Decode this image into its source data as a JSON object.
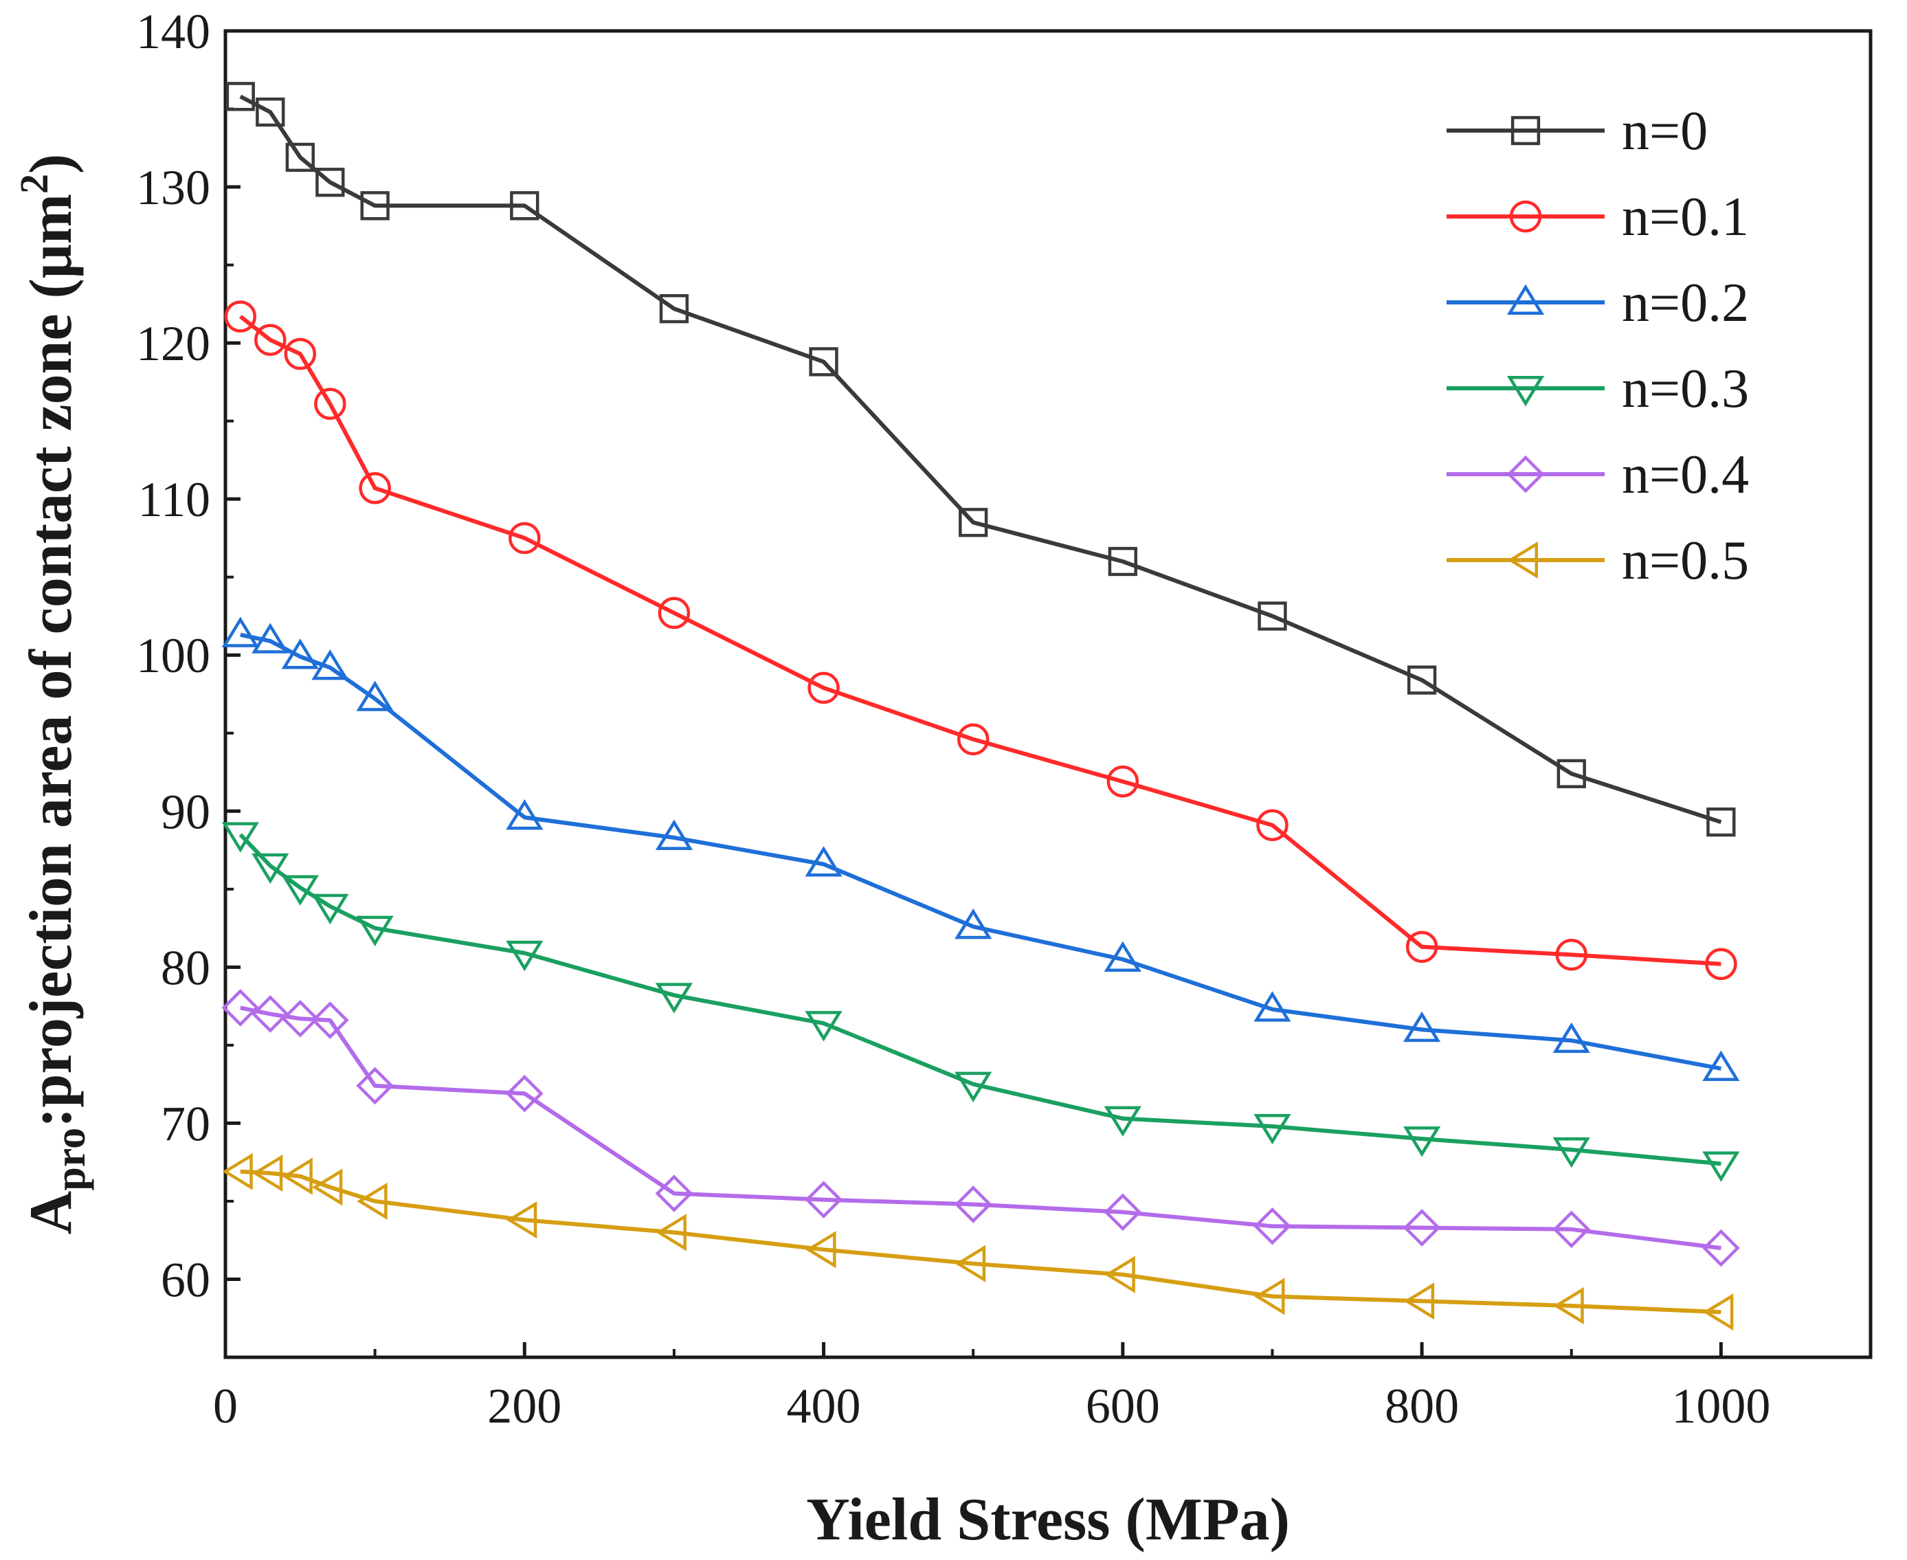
{
  "chart_data": {
    "type": "line",
    "xlabel": "Yield Stress (MPa)",
    "ylabel": {
      "main": "A",
      "sub": "pro",
      "rest": ":projection area of contact zone (μm",
      "sup": "2",
      "close": ")"
    },
    "xlim": [
      0,
      1100
    ],
    "ylim": [
      55,
      140
    ],
    "xticks": [
      0,
      200,
      400,
      600,
      800,
      1000
    ],
    "yticks": [
      60,
      70,
      80,
      90,
      100,
      110,
      120,
      130,
      140
    ],
    "grid": false,
    "legend_position": "top-right",
    "x": [
      10,
      30,
      50,
      70,
      100,
      200,
      300,
      400,
      500,
      600,
      700,
      800,
      900,
      1000
    ],
    "series": [
      {
        "name": "n=0",
        "marker": "square",
        "color": "#3a3a3a",
        "values": [
          135.8,
          134.8,
          131.9,
          130.3,
          128.8,
          128.8,
          122.2,
          118.8,
          108.5,
          106.0,
          102.5,
          98.4,
          92.4,
          89.3
        ]
      },
      {
        "name": "n=0.1",
        "marker": "circle",
        "color": "#ff2a2a",
        "values": [
          121.7,
          120.2,
          119.3,
          116.1,
          110.7,
          107.5,
          102.7,
          97.9,
          94.6,
          91.9,
          89.1,
          81.3,
          80.8,
          80.2
        ]
      },
      {
        "name": "n=0.2",
        "marker": "triangle-up",
        "color": "#1f6fd8",
        "values": [
          101.3,
          100.9,
          99.9,
          99.2,
          97.2,
          89.6,
          88.3,
          86.6,
          82.6,
          80.5,
          77.3,
          76.0,
          75.3,
          73.5
        ]
      },
      {
        "name": "n=0.3",
        "marker": "triangle-down",
        "color": "#1aa060",
        "values": [
          88.5,
          86.5,
          85.1,
          83.9,
          82.5,
          80.9,
          78.2,
          76.4,
          72.5,
          70.3,
          69.8,
          69.0,
          68.3,
          67.4
        ]
      },
      {
        "name": "n=0.4",
        "marker": "diamond",
        "color": "#b36bea",
        "values": [
          77.4,
          77.0,
          76.7,
          76.6,
          72.4,
          71.9,
          65.5,
          65.1,
          64.8,
          64.3,
          63.4,
          63.3,
          63.2,
          62.0
        ]
      },
      {
        "name": "n=0.5",
        "marker": "triangle-left",
        "color": "#d69e12",
        "values": [
          66.9,
          66.8,
          66.6,
          65.9,
          65.0,
          63.8,
          63.0,
          61.9,
          61.0,
          60.3,
          58.9,
          58.6,
          58.3,
          57.9
        ]
      }
    ]
  }
}
